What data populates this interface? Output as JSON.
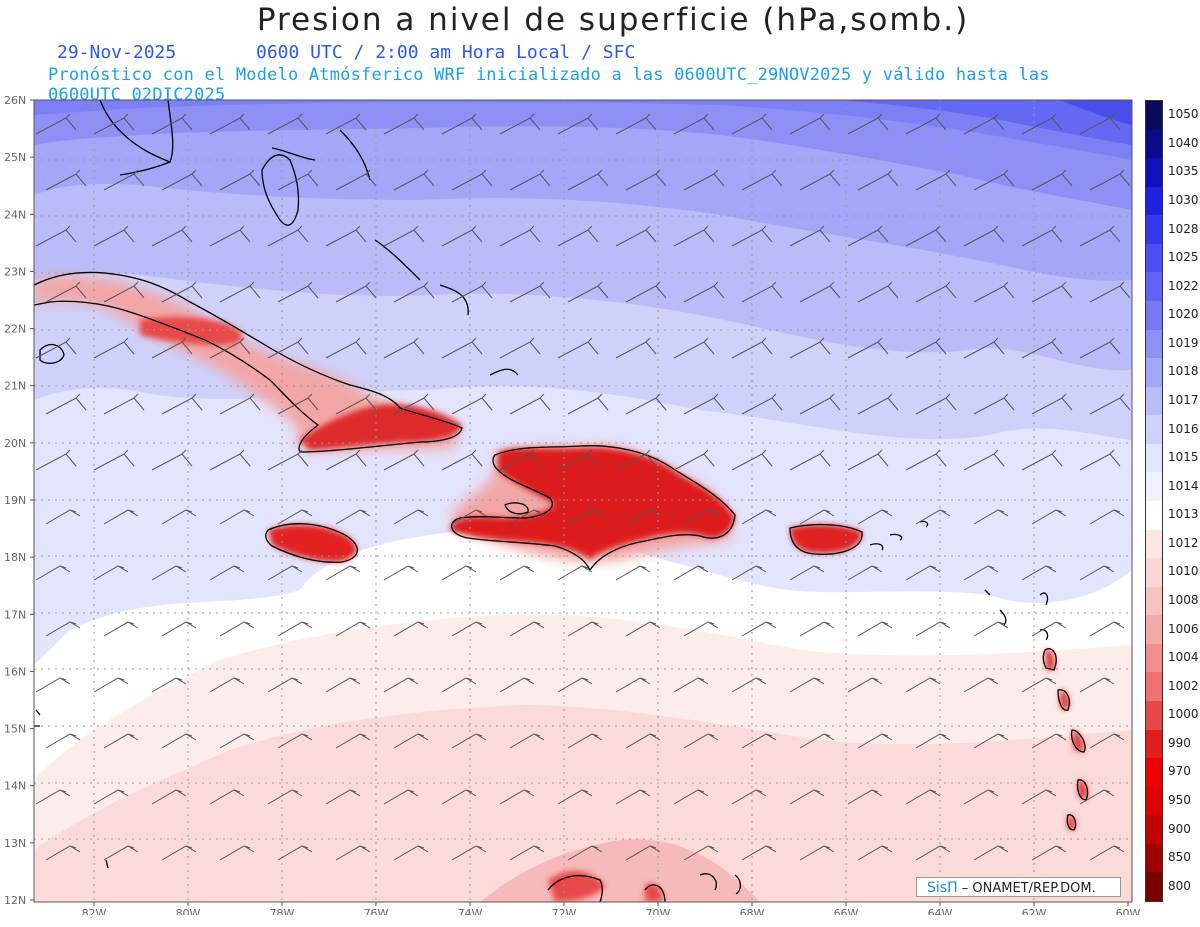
{
  "header": {
    "title": "Presion a nivel de superficie (hPa,somb.)",
    "date": "29-Nov-2025",
    "time_line": "0600 UTC / 2:00 am Hora Local / SFC",
    "subtitle": "Pronóstico con el Modelo Atmósferico WRF inicializado a las 0600UTC_29NOV2025 y válido hasta las  0600UTC_02DIC2025"
  },
  "map": {
    "latitude_labels": [
      "26N",
      "25N",
      "24N",
      "23N",
      "22N",
      "21N",
      "20N",
      "19N",
      "18N",
      "17N",
      "16N",
      "15N",
      "14N",
      "13N",
      "12N"
    ],
    "longitude_labels": [
      "82W",
      "80W",
      "78W",
      "76W",
      "74W",
      "72W",
      "70W",
      "68W",
      "66W",
      "64W",
      "62W",
      "60W"
    ],
    "lat_range": [
      12,
      26
    ],
    "lon_range": [
      -83.2,
      -60
    ],
    "grid": "dotted",
    "colors": {
      "high_pressure": "#7b82ff",
      "mid_pressure": "#c9ccf9",
      "neutral": "#ffffff",
      "low_pressure": "#f7d3d3",
      "land_heating": "#dd1c24"
    }
  },
  "legend": {
    "levels": [
      "1050",
      "1040",
      "1035",
      "1030",
      "1028",
      "1025",
      "1022",
      "1020",
      "1019",
      "1018",
      "1017",
      "1016",
      "1015",
      "1014",
      "1013",
      "1012",
      "1010",
      "1008",
      "1006",
      "1004",
      "1002",
      "1000",
      "990",
      "970",
      "950",
      "900",
      "850",
      "800"
    ],
    "colors": [
      "#0a0a5a",
      "#0a0a88",
      "#1010b8",
      "#2020e0",
      "#3838ee",
      "#4e4ef4",
      "#6262f4",
      "#7878f6",
      "#8e90f6",
      "#a4a6f8",
      "#babcfa",
      "#cfd1fb",
      "#e2e3fd",
      "#f2f2fe",
      "#ffffff",
      "#fde6e6",
      "#fbd6d6",
      "#f8c2c2",
      "#f5aaaa",
      "#f19090",
      "#ec7272",
      "#e64848",
      "#e01e1e",
      "#ee0000",
      "#dd0000",
      "#c00000",
      "#a00000",
      "#7a0000"
    ]
  },
  "credit": {
    "brand": "SisΠ",
    "text": " – ONAMET/REP.DOM."
  }
}
